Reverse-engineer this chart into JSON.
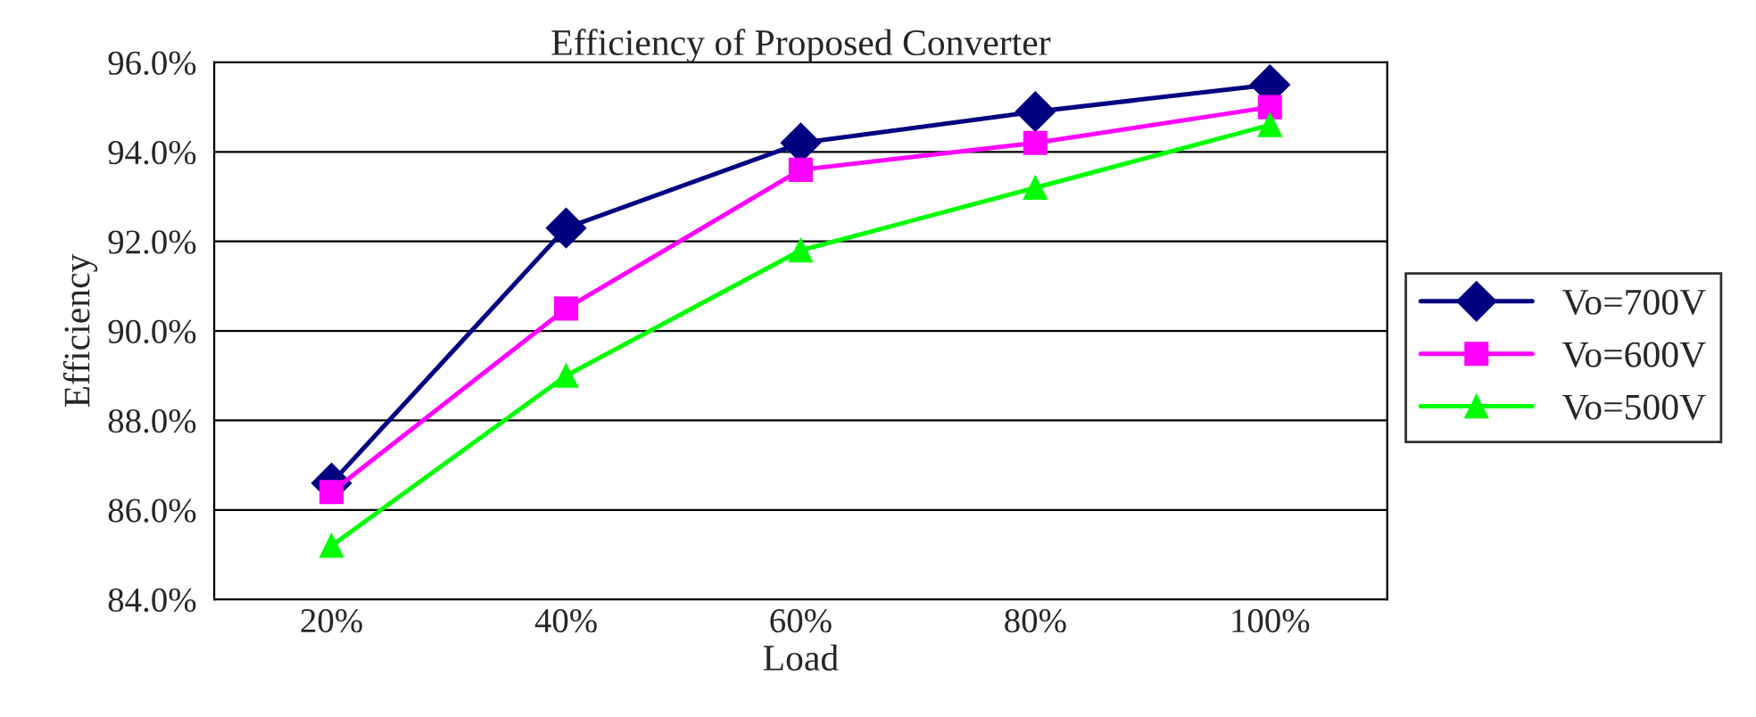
{
  "chart_data": {
    "type": "line",
    "title": "Efficiency of Proposed Converter",
    "xlabel": "Load",
    "ylabel": "Efficiency",
    "categories": [
      "20%",
      "40%",
      "60%",
      "80%",
      "100%"
    ],
    "series": [
      {
        "name": "Vo=700V",
        "color": "#000080",
        "marker": "diamond",
        "values": [
          86.6,
          92.3,
          94.2,
          94.9,
          95.5
        ]
      },
      {
        "name": "Vo=600V",
        "color": "#ff00ff",
        "marker": "square",
        "values": [
          86.4,
          90.5,
          93.6,
          94.2,
          95.0
        ]
      },
      {
        "name": "Vo=500V",
        "color": "#00ff00",
        "marker": "triangle",
        "values": [
          85.2,
          89.0,
          91.8,
          93.2,
          94.6
        ]
      }
    ],
    "ylim": [
      84,
      96
    ],
    "yticks": [
      {
        "value": 84,
        "label": "84.0%"
      },
      {
        "value": 86,
        "label": "86.0%"
      },
      {
        "value": 88,
        "label": "88.0%"
      },
      {
        "value": 90,
        "label": "90.0%"
      },
      {
        "value": 92,
        "label": "92.0%"
      },
      {
        "value": 94,
        "label": "94.0%"
      },
      {
        "value": 96,
        "label": "96.0%"
      }
    ],
    "grid": "y",
    "legend": "right",
    "line_style": "solid"
  }
}
